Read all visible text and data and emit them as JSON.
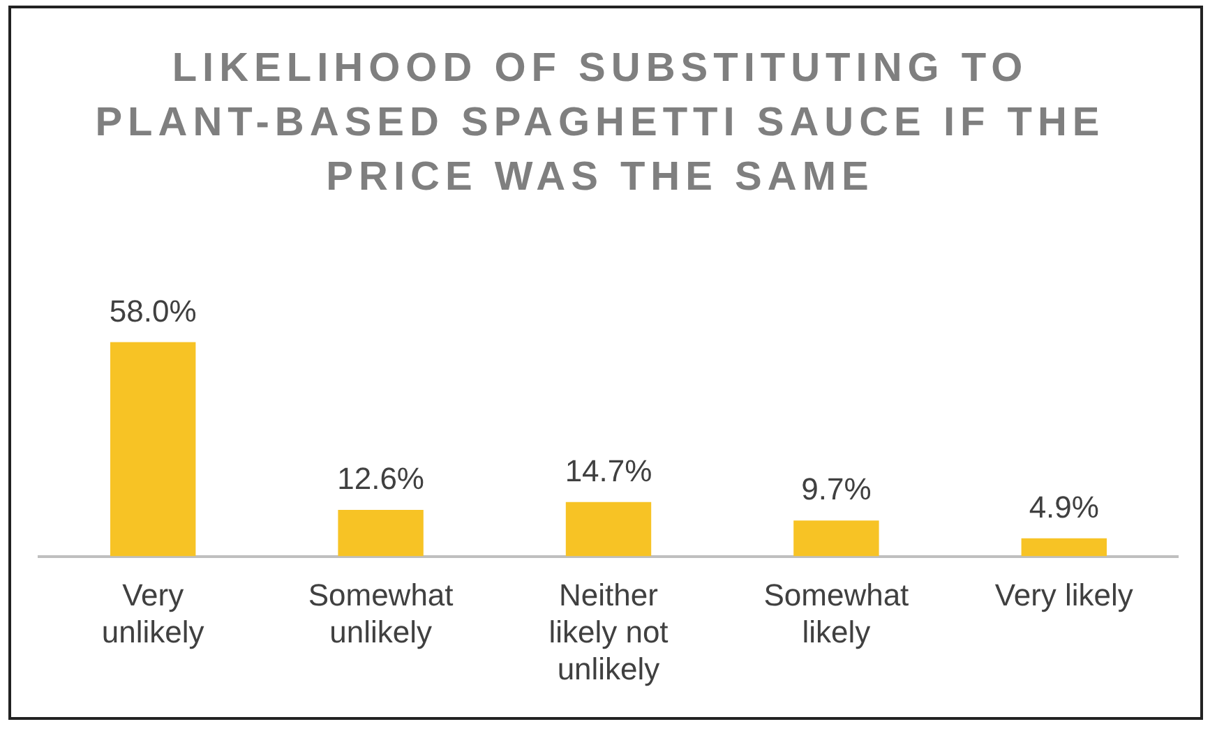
{
  "chart_data": {
    "type": "bar",
    "title": "LIKELIHOOD OF SUBSTITUTING TO PLANT-BASED SPAGHETTI SAUCE IF THE PRICE WAS THE SAME",
    "categories": [
      "Very unlikely",
      "Somewhat unlikely",
      "Neither likely not unlikely",
      "Somewhat likely",
      "Very likely"
    ],
    "values": [
      58.0,
      12.6,
      14.7,
      9.7,
      4.9
    ],
    "value_labels": [
      "58.0%",
      "12.6%",
      "14.7%",
      "9.7%",
      "4.9%"
    ],
    "color": "#f7c325",
    "grid": false,
    "legend": false
  }
}
